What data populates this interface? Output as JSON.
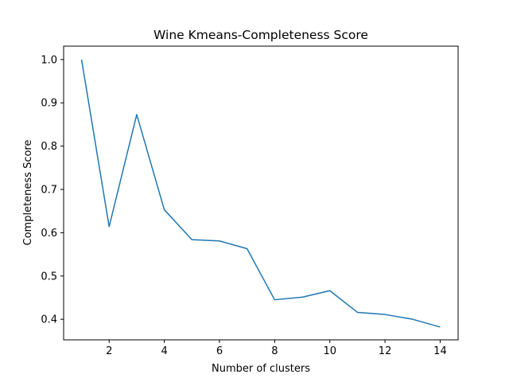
{
  "chart_data": {
    "type": "line",
    "title": "Wine Kmeans-Completeness Score",
    "xlabel": "Number of clusters",
    "ylabel": "Completeness Score",
    "xlim": [
      0.35,
      14.65
    ],
    "ylim": [
      0.3525,
      1.031
    ],
    "xticks": [
      2,
      4,
      6,
      8,
      10,
      12,
      14
    ],
    "yticks": [
      0.4,
      0.5,
      0.6,
      0.7,
      0.8,
      0.9,
      1.0
    ],
    "ytick_labels": [
      "0.4",
      "0.5",
      "0.6",
      "0.7",
      "0.8",
      "0.9",
      "1.0"
    ],
    "grid": false,
    "series": [
      {
        "color": "#1f77b4",
        "x": [
          1,
          2,
          3,
          4,
          5,
          6,
          7,
          8,
          9,
          10,
          11,
          12,
          13,
          14
        ],
        "y": [
          1.0,
          0.614,
          0.873,
          0.653,
          0.584,
          0.581,
          0.563,
          0.445,
          0.451,
          0.466,
          0.416,
          0.411,
          0.4,
          0.382
        ]
      }
    ]
  }
}
